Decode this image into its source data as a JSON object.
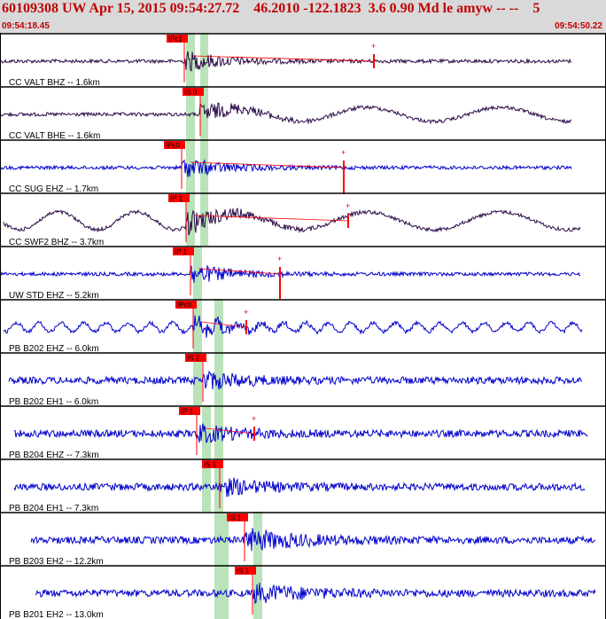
{
  "header": {
    "title": "60109308 UW Apr 15, 2015 09:54:27.72    46.2010 -122.1823  3.6 0.90 Md le amyw -- --    5",
    "time_start": "09:54:18.45",
    "time_end": "09:54:50.22"
  },
  "colors": {
    "header_bg": "#d9d9d9",
    "header_text": "#c00000",
    "trace_dark": "#2b0a47",
    "trace_blue": "#0000cc",
    "pick": "#ff0000",
    "window": "#b9e3b9",
    "separator": "#000000"
  },
  "traces": [
    {
      "label": "CC VALT BHZ -- 1.6km",
      "pick": "IPc1",
      "color": "dark",
      "has_marker": true
    },
    {
      "label": "CC VALT BHE -- 1.6km",
      "pick": "IS 0",
      "color": "dark",
      "has_marker": false
    },
    {
      "label": "CC SUG EHZ -- 1.7km",
      "pick": "IPc0",
      "color": "blue",
      "has_marker": true
    },
    {
      "label": "CC SWF2 BHZ -- 3.7km",
      "pick": "IP 1",
      "color": "dark",
      "has_marker": true
    },
    {
      "label": "UW STD EHZ -- 5.2km",
      "pick": "IP 1",
      "color": "blue",
      "has_marker": true
    },
    {
      "label": "PB B202 EHZ -- 6.0km",
      "pick": "IPc0",
      "color": "blue",
      "has_marker": true
    },
    {
      "label": "PB B202 EH1 -- 6.0km",
      "pick": "IS 2",
      "color": "blue",
      "has_marker": false
    },
    {
      "label": "PB B204 EHZ -- 7.3km",
      "pick": "IP 1",
      "color": "blue",
      "has_marker": true
    },
    {
      "label": "PB B204 EH1 -- 7.3km",
      "pick": "IS 1",
      "color": "blue",
      "has_marker": false
    },
    {
      "label": "PB B203 EH2 -- 12.2km",
      "pick": "IS 1",
      "color": "blue",
      "has_marker": false
    },
    {
      "label": "PB B201 EH2 -- 13.0km",
      "pick": "IS 1",
      "color": "blue",
      "has_marker": false
    }
  ]
}
